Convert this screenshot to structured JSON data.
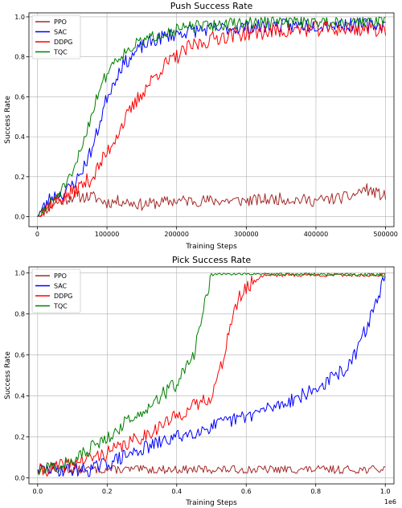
{
  "chart_data": [
    {
      "type": "line",
      "title": "Push Success Rate",
      "xlabel": "Training Steps",
      "ylabel": "Success Rate",
      "xlim": [
        -12000,
        512000
      ],
      "ylim": [
        -0.05,
        1.02
      ],
      "xticks": [
        0,
        100000,
        200000,
        300000,
        400000,
        500000
      ],
      "xtick_labels": [
        "0",
        "100000",
        "200000",
        "300000",
        "400000",
        "500000"
      ],
      "yticks": [
        0.0,
        0.2,
        0.4,
        0.6,
        0.8,
        1.0
      ],
      "ytick_labels": [
        "0.0",
        "0.2",
        "0.4",
        "0.6",
        "0.8",
        "1.0"
      ],
      "x_offset_label": "",
      "grid": true,
      "legend_position": "upper-left",
      "series": [
        {
          "name": "PPO",
          "color": "#a52a2a",
          "noise": 0.03,
          "seed": 11,
          "x": [
            0,
            20000,
            50000,
            80000,
            100000,
            120000,
            150000,
            200000,
            250000,
            300000,
            350000,
            400000,
            450000,
            470000,
            500000
          ],
          "y": [
            0.0,
            0.06,
            0.1,
            0.1,
            0.07,
            0.08,
            0.06,
            0.08,
            0.08,
            0.08,
            0.09,
            0.08,
            0.1,
            0.14,
            0.1
          ]
        },
        {
          "name": "SAC",
          "color": "#0000ff",
          "noise": 0.035,
          "seed": 23,
          "x": [
            0,
            20000,
            40000,
            60000,
            80000,
            100000,
            120000,
            150000,
            180000,
            220000,
            300000,
            400000,
            500000
          ],
          "y": [
            0.0,
            0.1,
            0.12,
            0.2,
            0.35,
            0.6,
            0.75,
            0.85,
            0.9,
            0.93,
            0.95,
            0.96,
            0.96
          ]
        },
        {
          "name": "DDPG",
          "color": "#ff0000",
          "noise": 0.04,
          "seed": 37,
          "x": [
            0,
            20000,
            50000,
            80000,
            100000,
            120000,
            150000,
            180000,
            220000,
            260000,
            300000,
            400000,
            500000
          ],
          "y": [
            0.0,
            0.07,
            0.12,
            0.2,
            0.32,
            0.45,
            0.62,
            0.75,
            0.85,
            0.9,
            0.92,
            0.94,
            0.94
          ]
        },
        {
          "name": "TQC",
          "color": "#008000",
          "noise": 0.03,
          "seed": 51,
          "x": [
            0,
            20000,
            50000,
            70000,
            90000,
            110000,
            140000,
            180000,
            220000,
            300000,
            400000,
            500000
          ],
          "y": [
            0.0,
            0.07,
            0.2,
            0.42,
            0.65,
            0.78,
            0.86,
            0.92,
            0.95,
            0.97,
            0.98,
            0.98
          ]
        }
      ]
    },
    {
      "type": "line",
      "title": "Pick Success Rate",
      "xlabel": "Training Steps",
      "ylabel": "Success Rate",
      "xlim": [
        -0.025,
        1.025
      ],
      "ylim": [
        -0.03,
        1.03
      ],
      "xticks": [
        0.0,
        0.2,
        0.4,
        0.6,
        0.8,
        1.0
      ],
      "xtick_labels": [
        "0.0",
        "0.2",
        "0.4",
        "0.6",
        "0.8",
        "1.0"
      ],
      "yticks": [
        0.0,
        0.2,
        0.4,
        0.6,
        0.8,
        1.0
      ],
      "ytick_labels": [
        "0.0",
        "0.2",
        "0.4",
        "0.6",
        "0.8",
        "1.0"
      ],
      "x_offset_label": "1e6",
      "grid": true,
      "legend_position": "upper-left",
      "series": [
        {
          "name": "PPO",
          "color": "#a52a2a",
          "noise": 0.02,
          "seed": 13,
          "x": [
            0.0,
            0.2,
            0.4,
            0.6,
            0.8,
            1.0
          ],
          "y": [
            0.04,
            0.04,
            0.04,
            0.04,
            0.04,
            0.04
          ]
        },
        {
          "name": "SAC",
          "color": "#0000ff",
          "noise": 0.035,
          "seed": 29,
          "x": [
            0.0,
            0.15,
            0.2,
            0.3,
            0.4,
            0.5,
            0.6,
            0.7,
            0.8,
            0.9,
            0.95,
            1.0
          ],
          "y": [
            0.04,
            0.04,
            0.07,
            0.14,
            0.2,
            0.25,
            0.3,
            0.36,
            0.43,
            0.55,
            0.75,
            0.98
          ]
        },
        {
          "name": "DDPG",
          "color": "#ff0000",
          "noise": 0.035,
          "seed": 41,
          "x": [
            0.0,
            0.1,
            0.2,
            0.3,
            0.4,
            0.5,
            0.53,
            0.55,
            0.58,
            0.62,
            0.65,
            0.7,
            1.0
          ],
          "y": [
            0.03,
            0.07,
            0.12,
            0.2,
            0.3,
            0.4,
            0.55,
            0.72,
            0.88,
            0.96,
            0.99,
            0.99,
            0.99
          ]
        },
        {
          "name": "TQC",
          "color": "#008000",
          "noise": 0.035,
          "seed": 57,
          "x": [
            0.0,
            0.1,
            0.2,
            0.3,
            0.4,
            0.45,
            0.48,
            0.5,
            0.52,
            0.6,
            1.0
          ],
          "y": [
            0.03,
            0.08,
            0.2,
            0.33,
            0.46,
            0.6,
            0.85,
            0.99,
            1.0,
            1.0,
            0.99
          ]
        }
      ]
    }
  ]
}
